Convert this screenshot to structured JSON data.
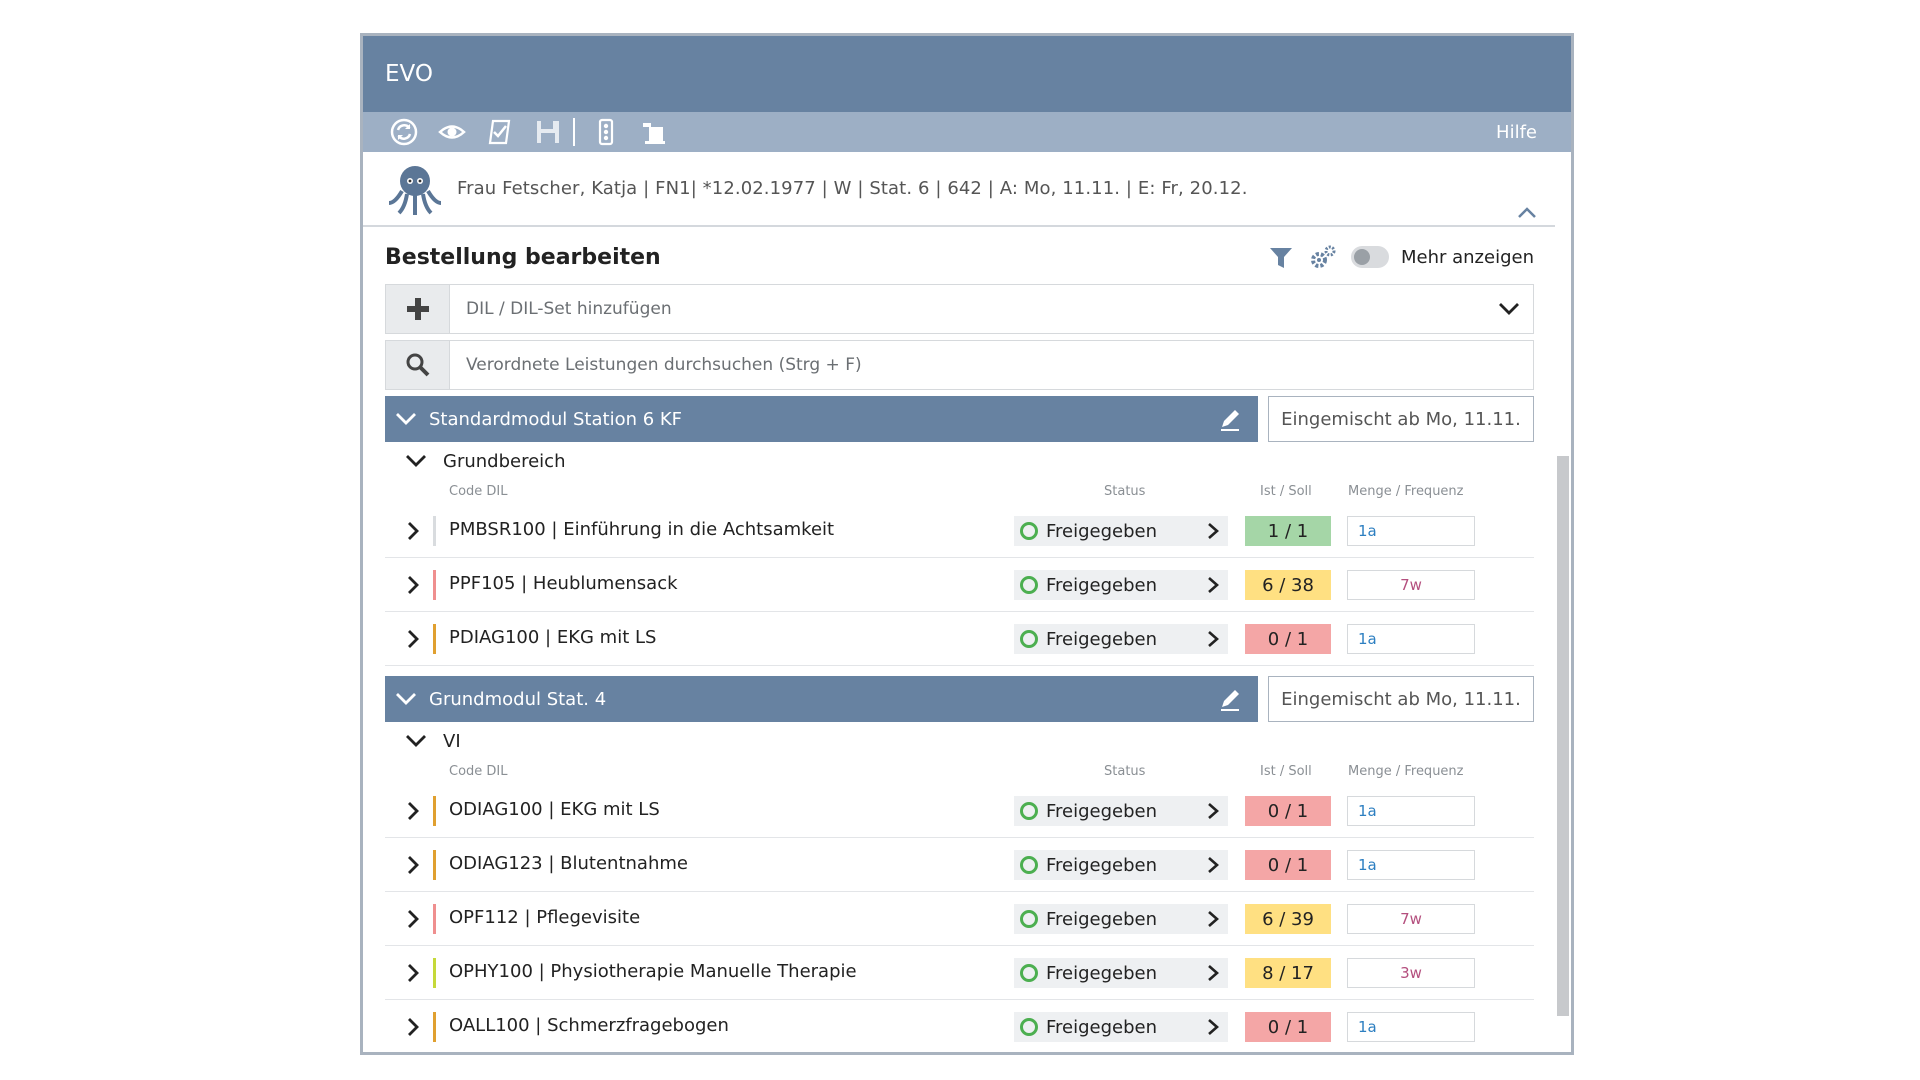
{
  "app": {
    "title": "EVO"
  },
  "toolbar": {
    "icons": [
      "refresh-icon",
      "eye-icon",
      "approve-icon",
      "save-icon",
      "traffic-light-icon",
      "order-icon"
    ],
    "help_label": "Hilfe"
  },
  "patient": {
    "summary": "Frau Fetscher, Katja | FN1| *12.02.1977 | W | Stat. 6 | 642 | A: Mo, 11.11. | E: Fr, 20.12."
  },
  "page": {
    "title": "Bestellung bearbeiten",
    "more_label": "Mehr anzeigen",
    "more_toggle_on": false
  },
  "add_dil": {
    "placeholder": "DIL / DIL-Set hinzufügen"
  },
  "search": {
    "placeholder": "Verordnete Leistungen durchsuchen (Strg + F)"
  },
  "columns": {
    "code": "Code DIL",
    "status": "Status",
    "ist_soll": "Ist / Soll",
    "menge": "Menge / Frequenz"
  },
  "colors": {
    "header": "#6782a1",
    "toolbar": "#9dafc5",
    "green": "#a5d6a7",
    "yellow": "#ffe082",
    "red": "#f4a6a6",
    "status_ring": "#4caf50",
    "freq_blue": "#2d7fc1",
    "freq_pink": "#b44f7e"
  },
  "modules": [
    {
      "name": "Standardmodul Station 6 KF",
      "badge": "Eingemischt ab Mo, 11.11.",
      "group": "Grundbereich",
      "items": [
        {
          "label": "PMBSR100 | Einführung in die Achtsamkeit",
          "stripe": "#d9dcdf",
          "status": "Freigegeben",
          "count": "1 / 1",
          "count_color": "#a5d6a7",
          "freq": "1a",
          "freq_color": "#2d7fc1"
        },
        {
          "label": "PPF105 | Heublumensack",
          "stripe": "#ef8f8f",
          "status": "Freigegeben",
          "count": "6 / 38",
          "count_color": "#ffe082",
          "freq": "7w",
          "freq_color": "#b44f7e"
        },
        {
          "label": "PDIAG100 | EKG mit LS",
          "stripe": "#e0a030",
          "status": "Freigegeben",
          "count": "0 / 1",
          "count_color": "#f4a6a6",
          "freq": "1a",
          "freq_color": "#2d7fc1"
        }
      ]
    },
    {
      "name": "Grundmodul Stat. 4",
      "badge": "Eingemischt ab Mo, 11.11.",
      "group": "VI",
      "items": [
        {
          "label": "ODIAG100 | EKG mit LS",
          "stripe": "#e0a030",
          "status": "Freigegeben",
          "count": "0 / 1",
          "count_color": "#f4a6a6",
          "freq": "1a",
          "freq_color": "#2d7fc1"
        },
        {
          "label": "ODIAG123 | Blutentnahme",
          "stripe": "#e0a030",
          "status": "Freigegeben",
          "count": "0 / 1",
          "count_color": "#f4a6a6",
          "freq": "1a",
          "freq_color": "#2d7fc1"
        },
        {
          "label": "OPF112 | Pflegevisite",
          "stripe": "#ef8f8f",
          "status": "Freigegeben",
          "count": "6 / 39",
          "count_color": "#ffe082",
          "freq": "7w",
          "freq_color": "#b44f7e"
        },
        {
          "label": "OPHY100 | Physiotherapie Manuelle Therapie",
          "stripe": "#c5d93a",
          "status": "Freigegeben",
          "count": "8 / 17",
          "count_color": "#ffe082",
          "freq": "3w",
          "freq_color": "#b44f7e"
        },
        {
          "label": "OALL100 | Schmerzfragebogen",
          "stripe": "#e0a030",
          "status": "Freigegeben",
          "count": "0 / 1",
          "count_color": "#f4a6a6",
          "freq": "1a",
          "freq_color": "#2d7fc1"
        }
      ]
    }
  ]
}
